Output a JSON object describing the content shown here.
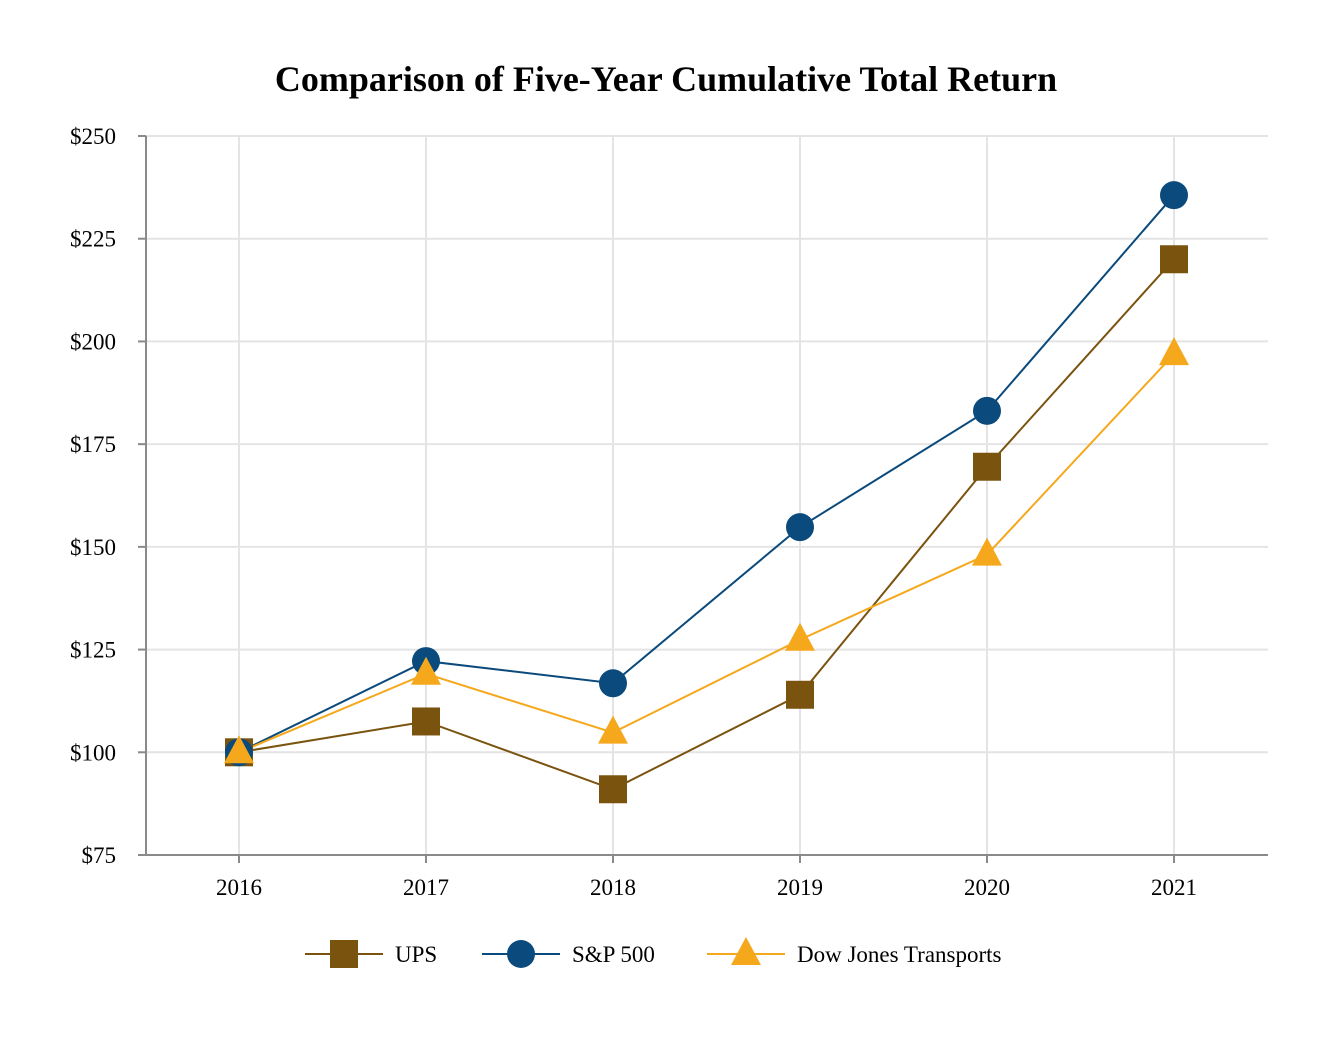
{
  "chart_data": {
    "type": "line",
    "title": "Comparison of Five-Year Cumulative Total Return",
    "xlabel": "",
    "ylabel": "",
    "categories": [
      "2016",
      "2017",
      "2018",
      "2019",
      "2020",
      "2021"
    ],
    "ylim": [
      75,
      250
    ],
    "yticks": [
      75,
      100,
      125,
      150,
      175,
      200,
      225,
      250
    ],
    "ytick_labels": [
      "$75",
      "$100",
      "$125",
      "$150",
      "$175",
      "$200",
      "$225",
      "$250"
    ],
    "grid": true,
    "legend_position": "bottom-center",
    "series": [
      {
        "name": "UPS",
        "marker": "square",
        "color": "#7a530f",
        "values": [
          100,
          107.5,
          91,
          114,
          169.5,
          220
        ]
      },
      {
        "name": "S&P 500",
        "marker": "circle",
        "color": "#0b4a7c",
        "values": [
          100,
          122.2,
          116.8,
          154.8,
          183.1,
          235.6
        ]
      },
      {
        "name": "Dow Jones Transports",
        "marker": "triangle",
        "color": "#f5a81c",
        "values": [
          100,
          119.1,
          104.8,
          127.4,
          148.1,
          196.9
        ]
      }
    ]
  }
}
